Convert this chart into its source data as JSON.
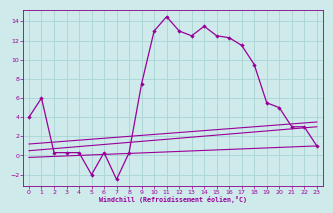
{
  "xlabel": "Windchill (Refroidissement éolien,°C)",
  "background_color": "#ceeaea",
  "grid_color": "#a8d4d4",
  "line_color": "#990099",
  "spine_color": "#880088",
  "xlim": [
    -0.5,
    23.5
  ],
  "ylim": [
    -3.2,
    15.2
  ],
  "yticks": [
    -2,
    0,
    2,
    4,
    6,
    8,
    10,
    12,
    14
  ],
  "xticks": [
    0,
    1,
    2,
    3,
    4,
    5,
    6,
    7,
    8,
    9,
    10,
    11,
    12,
    13,
    14,
    15,
    16,
    17,
    18,
    19,
    20,
    21,
    22,
    23
  ],
  "series1_x": [
    0,
    1,
    2,
    3,
    4,
    5,
    6,
    7,
    8,
    9,
    10,
    11,
    12,
    13,
    14,
    15,
    16,
    17,
    18,
    19,
    20,
    21,
    22,
    23
  ],
  "series1_y": [
    4.0,
    6.0,
    0.3,
    0.3,
    0.3,
    -2.0,
    0.3,
    -2.5,
    0.3,
    7.5,
    13.0,
    14.5,
    13.0,
    12.5,
    13.5,
    12.5,
    12.3,
    11.5,
    9.5,
    5.5,
    5.0,
    3.0,
    3.0,
    1.0
  ],
  "series2_x": [
    0,
    23
  ],
  "series2_y": [
    -0.2,
    1.0
  ],
  "series3_x": [
    0,
    23
  ],
  "series3_y": [
    0.5,
    3.0
  ],
  "series4_x": [
    0,
    23
  ],
  "series4_y": [
    1.2,
    3.5
  ]
}
